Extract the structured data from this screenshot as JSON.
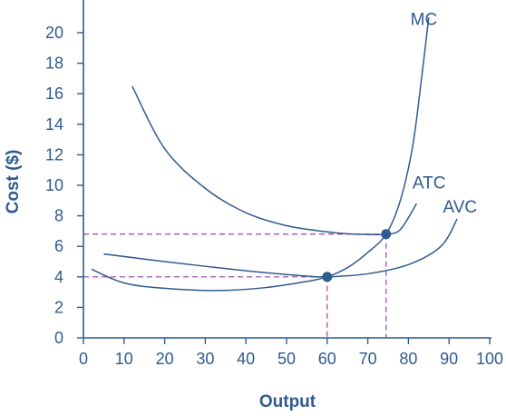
{
  "chart_data": {
    "type": "line",
    "title": "",
    "xlabel": "Output",
    "ylabel": "Cost ($)",
    "xlim": [
      0,
      100
    ],
    "ylim": [
      0,
      20
    ],
    "xticks": [
      "0",
      "10",
      "20",
      "30",
      "40",
      "50",
      "60",
      "70",
      "80",
      "90",
      "100"
    ],
    "yticks": [
      "0",
      "2",
      "4",
      "6",
      "8",
      "10",
      "12",
      "14",
      "16",
      "18",
      "20"
    ],
    "grid": false,
    "colors": {
      "curves": "#2f5b8f",
      "axis": "#2f5b8f",
      "guides": "#9c3fa8",
      "points": "#2f5b8f"
    },
    "series": [
      {
        "name": "MC",
        "x": [
          2,
          10,
          20,
          33,
          45,
          55,
          60,
          65,
          70,
          74.5,
          78,
          81,
          83,
          85
        ],
        "y": [
          4.5,
          3.6,
          3.25,
          3.1,
          3.3,
          3.7,
          4.0,
          4.6,
          5.6,
          6.8,
          9.0,
          12.5,
          16.5,
          21.0
        ]
      },
      {
        "name": "ATC",
        "x": [
          12,
          20,
          30,
          40,
          50,
          60,
          65,
          70,
          74.5,
          78,
          82
        ],
        "y": [
          16.5,
          12.4,
          9.8,
          8.2,
          7.35,
          6.95,
          6.82,
          6.78,
          6.8,
          7.1,
          8.8
        ]
      },
      {
        "name": "AVC",
        "x": [
          5,
          20,
          40,
          55,
          60,
          70,
          80,
          88,
          92
        ],
        "y": [
          5.5,
          5.0,
          4.4,
          4.05,
          4.0,
          4.2,
          4.8,
          6.0,
          7.8
        ]
      }
    ],
    "points": [
      {
        "x": 60,
        "y": 4.0
      },
      {
        "x": 74.5,
        "y": 6.8
      }
    ],
    "guides": [
      {
        "x": 60,
        "y": 4.0
      },
      {
        "x": 74.5,
        "y": 6.8
      }
    ],
    "labels": [
      {
        "text": "MC",
        "x": 80.5,
        "y": 20.5
      },
      {
        "text": "ATC",
        "x": 81,
        "y": 9.8
      },
      {
        "text": "AVC",
        "x": 88.5,
        "y": 8.2
      }
    ]
  }
}
